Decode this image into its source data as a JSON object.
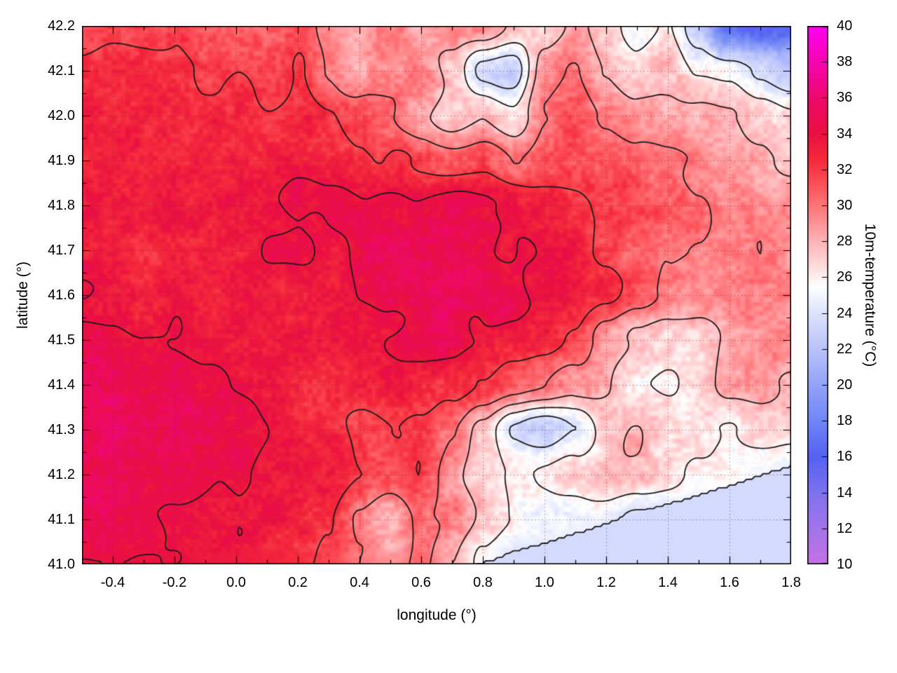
{
  "chart_data": {
    "type": "heatmap",
    "title": "",
    "xlabel": "longitude (°)",
    "ylabel": "latitude (°)",
    "colorbar_label": "10m-temperature (°C)",
    "xlim": [
      -0.5,
      1.8
    ],
    "ylim": [
      41.0,
      42.2
    ],
    "zlim": [
      10,
      40
    ],
    "x_tick_values": [
      -0.4,
      -0.2,
      0.0,
      0.2,
      0.4,
      0.6,
      0.8,
      1.0,
      1.2,
      1.4,
      1.6,
      1.8
    ],
    "x_tick_labels": [
      "-0.4",
      "-0.2",
      "0.0",
      "0.2",
      "0.4",
      "0.6",
      "0.8",
      "1.0",
      "1.2",
      "1.4",
      "1.6",
      "1.8"
    ],
    "y_tick_values": [
      41.0,
      41.1,
      41.2,
      41.3,
      41.4,
      41.5,
      41.6,
      41.7,
      41.8,
      41.9,
      42.0,
      42.1,
      42.2
    ],
    "y_tick_labels": [
      "41.0",
      "41.1",
      "41.2",
      "41.3",
      "41.4",
      "41.5",
      "41.6",
      "41.7",
      "41.8",
      "41.9",
      "42.0",
      "42.1",
      "42.2"
    ],
    "colorbar_tick_values": [
      10,
      12,
      14,
      16,
      18,
      20,
      22,
      24,
      26,
      28,
      30,
      32,
      34,
      36,
      38,
      40
    ],
    "grid_on": true,
    "grid_line_color": "rgba(70,70,70,0.55)",
    "contour_levels": [
      24,
      26,
      28,
      30,
      32,
      34
    ],
    "contour_color": "#1a1a1a",
    "palette": [
      [
        10,
        "#c471e3"
      ],
      [
        12,
        "#a273e9"
      ],
      [
        14,
        "#7e72ee"
      ],
      [
        16,
        "#5561f2"
      ],
      [
        18,
        "#6f86f6"
      ],
      [
        20,
        "#93a3f8"
      ],
      [
        22,
        "#b9c3fa"
      ],
      [
        24,
        "#dde2fc"
      ],
      [
        25.5,
        "#ffffff"
      ],
      [
        26.5,
        "#ffdfe0"
      ],
      [
        28,
        "#ffb3b6"
      ],
      [
        29.5,
        "#ff8488"
      ],
      [
        31,
        "#fc555c"
      ],
      [
        32.5,
        "#f52a3c"
      ],
      [
        34,
        "#ea1040"
      ],
      [
        35.5,
        "#ec0a5f"
      ],
      [
        37,
        "#f30590"
      ],
      [
        40,
        "#fe02f2"
      ]
    ],
    "sea": {
      "value": 23.5,
      "coast_from": [
        0.78,
        41.0
      ],
      "coast_to": [
        1.8,
        41.22
      ]
    },
    "temperature_grid": {
      "lon_min": -0.5,
      "lon_step": 0.1,
      "lat_max": 42.2,
      "lat_step": 0.1,
      "ncols": 24,
      "nrows": 13,
      "values_north_to_south": [
        [
          31.5,
          32.0,
          32.0,
          31.5,
          31.0,
          31.0,
          30.5,
          31.5,
          29.5,
          28.5,
          30.0,
          28.0,
          29.0,
          29.5,
          27.5,
          27.0,
          28.5,
          27.0,
          25.5,
          26.5,
          23.0,
          17.0,
          16.0,
          16.0
        ],
        [
          32.5,
          33.0,
          33.0,
          32.5,
          32.0,
          32.0,
          31.5,
          32.0,
          30.0,
          28.0,
          29.0,
          29.5,
          27.5,
          23.5,
          23.0,
          29.0,
          30.0,
          28.0,
          26.5,
          27.5,
          26.0,
          25.5,
          23.5,
          22.0
        ],
        [
          33.0,
          33.0,
          33.0,
          33.0,
          32.5,
          32.5,
          32.0,
          32.5,
          32.0,
          31.0,
          30.0,
          28.5,
          27.0,
          28.0,
          26.5,
          30.0,
          31.0,
          30.0,
          29.0,
          28.0,
          28.5,
          28.0,
          27.0,
          26.0
        ],
        [
          33.0,
          33.5,
          33.0,
          33.0,
          33.0,
          33.0,
          33.0,
          33.5,
          33.0,
          32.5,
          32.0,
          31.5,
          31.0,
          31.5,
          30.0,
          31.0,
          31.5,
          31.0,
          30.5,
          30.0,
          29.5,
          29.0,
          28.5,
          28.0
        ],
        [
          33.5,
          33.5,
          33.0,
          33.5,
          33.0,
          33.5,
          34.0,
          34.5,
          34.0,
          34.0,
          34.5,
          34.0,
          34.5,
          34.0,
          33.5,
          33.0,
          32.5,
          32.0,
          31.5,
          31.0,
          30.0,
          29.5,
          29.0,
          29.5
        ],
        [
          33.0,
          33.0,
          32.5,
          33.0,
          33.0,
          33.5,
          34.0,
          34.0,
          33.5,
          34.5,
          35.0,
          35.0,
          35.0,
          34.5,
          34.0,
          33.5,
          33.0,
          32.0,
          31.0,
          30.5,
          30.0,
          29.5,
          30.0,
          29.0
        ],
        [
          34.0,
          33.5,
          33.0,
          33.5,
          33.0,
          33.0,
          33.5,
          33.0,
          33.5,
          34.0,
          34.5,
          35.0,
          35.0,
          34.5,
          34.5,
          34.0,
          33.5,
          32.5,
          31.0,
          30.0,
          29.0,
          29.5,
          30.0,
          29.5
        ],
        [
          34.5,
          34.5,
          34.0,
          34.0,
          33.5,
          33.5,
          33.0,
          33.5,
          33.0,
          33.5,
          34.0,
          34.5,
          34.5,
          34.0,
          33.5,
          33.0,
          32.0,
          29.0,
          27.5,
          26.5,
          26.5,
          28.0,
          29.0,
          29.5
        ],
        [
          35.0,
          35.0,
          34.5,
          34.5,
          34.0,
          34.0,
          33.5,
          33.0,
          32.5,
          33.0,
          33.5,
          33.0,
          32.5,
          31.5,
          30.5,
          30.0,
          29.0,
          28.0,
          26.5,
          26.0,
          27.0,
          28.5,
          29.0,
          28.0
        ],
        [
          35.0,
          35.5,
          35.0,
          35.0,
          34.5,
          34.0,
          34.0,
          33.5,
          32.5,
          31.5,
          32.0,
          31.5,
          30.0,
          27.0,
          23.5,
          22.5,
          24.0,
          27.0,
          28.0,
          27.0,
          26.5,
          26.0,
          27.0,
          26.0
        ],
        [
          35.0,
          35.0,
          35.0,
          34.5,
          34.5,
          34.0,
          33.5,
          33.5,
          33.0,
          32.0,
          31.0,
          32.0,
          29.0,
          27.0,
          26.0,
          26.5,
          27.0,
          28.0,
          27.5,
          26.5,
          26.0,
          25.5,
          25.0,
          24.5
        ],
        [
          34.5,
          34.5,
          34.5,
          34.0,
          34.0,
          34.0,
          33.5,
          33.0,
          32.0,
          29.5,
          28.0,
          30.5,
          30.0,
          27.5,
          26.0,
          25.5,
          25.0,
          24.5,
          23.5,
          23.5,
          23.5,
          23.5,
          23.5,
          23.5
        ],
        [
          34.0,
          34.0,
          34.0,
          34.0,
          33.5,
          33.5,
          33.0,
          32.5,
          31.5,
          30.0,
          29.0,
          30.5,
          28.0,
          25.5,
          23.5,
          23.5,
          23.5,
          23.5,
          23.5,
          23.5,
          23.5,
          23.5,
          23.5,
          23.5
        ]
      ]
    },
    "noise": {
      "fine_amp": 0.8,
      "fine_wl": 6.5,
      "mid_amp": 0.55,
      "mid_wl": 19,
      "low_amp": 0.5,
      "low_wl": 46
    }
  }
}
